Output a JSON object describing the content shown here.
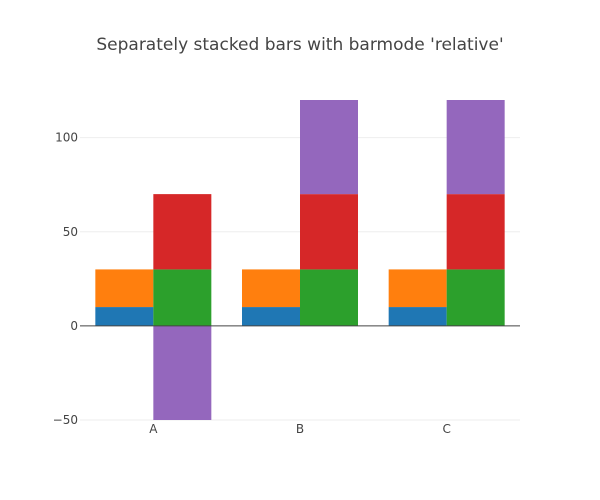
{
  "chart_data": {
    "type": "bar",
    "barmode": "relative",
    "title": "Separately stacked bars with barmode 'relative'",
    "categories": [
      "A",
      "B",
      "C"
    ],
    "ylim": [
      -50,
      120
    ],
    "yticks": [
      -50,
      0,
      50,
      100
    ],
    "grid": true,
    "legend": "none",
    "groups": [
      {
        "stack_position": "left",
        "series": [
          {
            "color": "#1f77b4",
            "values": [
              10,
              10,
              10
            ]
          },
          {
            "color": "#ff7f0e",
            "values": [
              20,
              20,
              20
            ]
          }
        ]
      },
      {
        "stack_position": "right",
        "series": [
          {
            "color": "#2ca02c",
            "values": [
              30,
              30,
              30
            ]
          },
          {
            "color": "#d62728",
            "values": [
              40,
              40,
              40
            ]
          },
          {
            "color": "#9467bd",
            "values": [
              -50,
              50,
              50
            ]
          }
        ]
      }
    ]
  }
}
